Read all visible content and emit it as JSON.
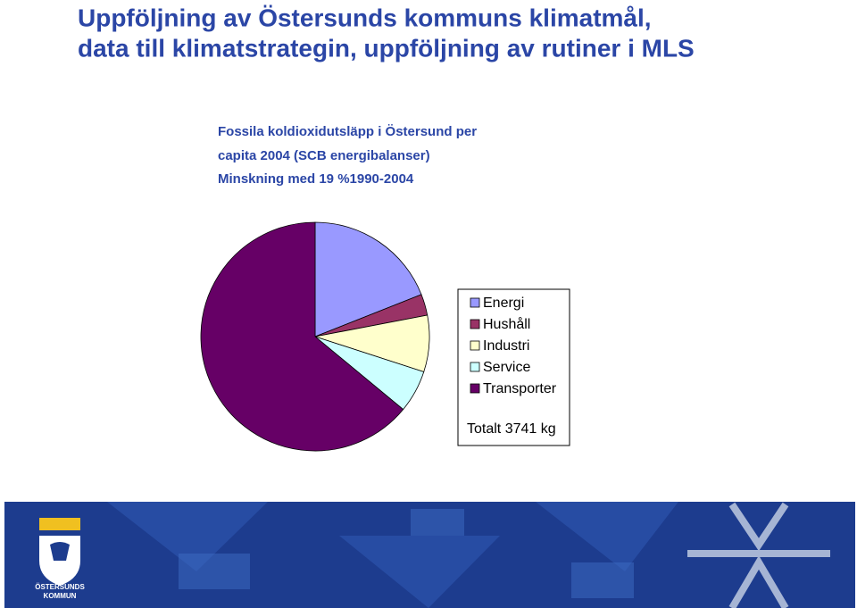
{
  "slide": {
    "title_lines": [
      "Uppföljning av Östersunds kommuns klimatmål,",
      "data till klimatstrategin, uppföljning av rutiner i MLS"
    ]
  },
  "chart_data": {
    "type": "pie",
    "title_lines": [
      "Fossila koldioxidutsläpp i Östersund per",
      "capita 2004 (SCB energibalanser)",
      "Minskning med 19 %1990-2004"
    ],
    "categories": [
      "Energi",
      "Hushåll",
      "Industri",
      "Service",
      "Transporter"
    ],
    "values": [
      19,
      3,
      8,
      6,
      64
    ],
    "colors": [
      "#9999ff",
      "#993366",
      "#ffffcc",
      "#ccffff",
      "#660066"
    ],
    "annotation": "Totalt 3741 kg",
    "legend": "right"
  },
  "footer": {
    "logo_lines": [
      "ÖSTERSUNDS",
      "KOMMUN"
    ]
  }
}
